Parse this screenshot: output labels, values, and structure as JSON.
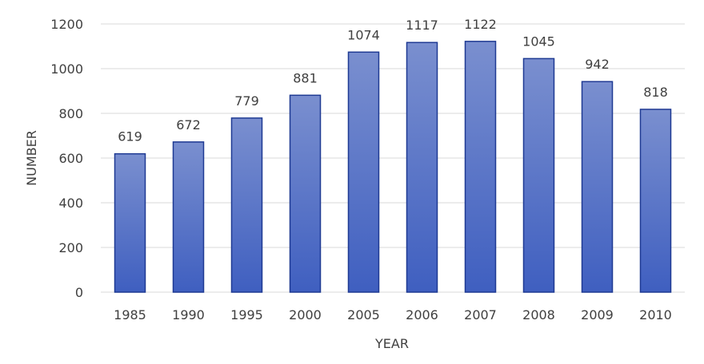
{
  "chart_data": {
    "type": "bar",
    "categories": [
      "1985",
      "1990",
      "1995",
      "2000",
      "2005",
      "2006",
      "2007",
      "2008",
      "2009",
      "2010"
    ],
    "values": [
      619,
      672,
      779,
      881,
      1074,
      1117,
      1122,
      1045,
      942,
      818
    ],
    "data_labels": [
      "619",
      "672",
      "779",
      "881",
      "1074",
      "1117",
      "1122",
      "1045",
      "942",
      "818"
    ],
    "xlabel": "YEAR",
    "ylabel": "NUMBER",
    "ylim": [
      0,
      1200
    ],
    "yticks": [
      "0",
      "200",
      "400",
      "600",
      "800",
      "1000",
      "1200"
    ],
    "grid": true,
    "legend": "none",
    "colors": {
      "bar_top": "#7a8fcf",
      "bar_bottom": "#3f5fc0",
      "bar_stroke": "#1f3a93",
      "grid": "#d9d9d9",
      "text": "#404040"
    }
  }
}
